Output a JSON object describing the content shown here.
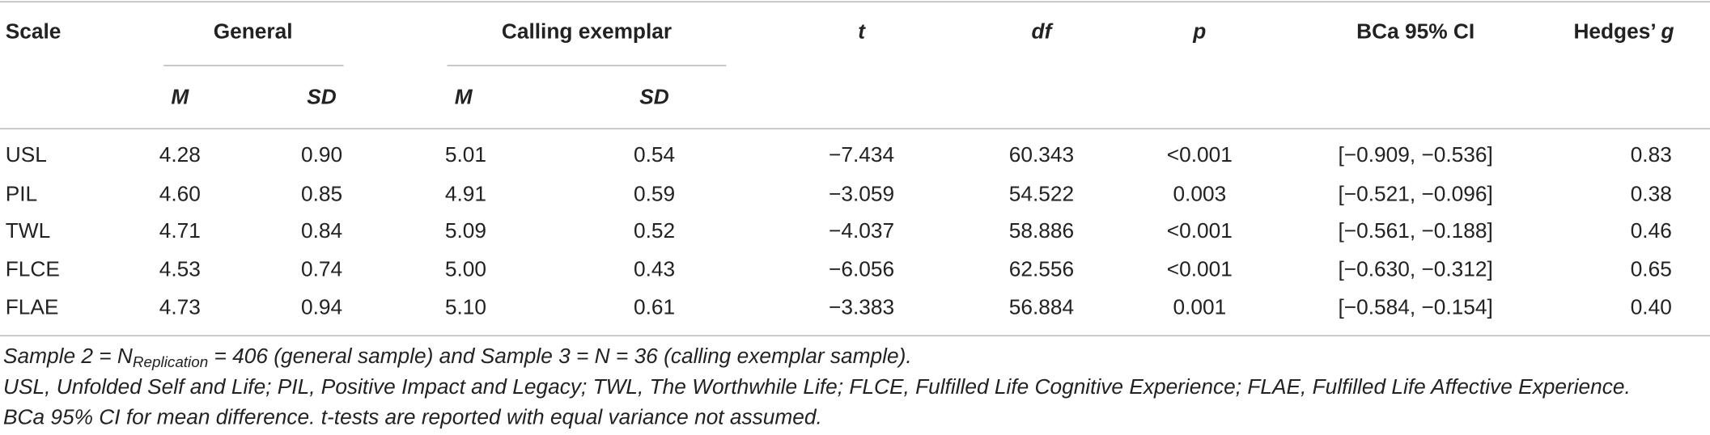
{
  "header": {
    "scale": "Scale",
    "groups": [
      "General",
      "Calling exemplar"
    ],
    "stats": [
      "t",
      "df",
      "p"
    ],
    "ci": "BCa 95% CI",
    "hedges": [
      "Hedges’ ",
      "g"
    ]
  },
  "subheader": [
    "M",
    "SD",
    "M",
    "SD"
  ],
  "rows": [
    [
      "USL",
      "4.28",
      "0.90",
      "5.01",
      "0.54",
      "−7.434",
      "60.343",
      "<0.001",
      "[−0.909, −0.536]",
      "0.83"
    ],
    [
      "PIL",
      "4.60",
      "0.85",
      "4.91",
      "0.59",
      "−3.059",
      "54.522",
      "0.003",
      "[−0.521, −0.096]",
      "0.38"
    ],
    [
      "TWL",
      "4.71",
      "0.84",
      "5.09",
      "0.52",
      "−4.037",
      "58.886",
      "<0.001",
      "[−0.561, −0.188]",
      "0.46"
    ],
    [
      "FLCE",
      "4.53",
      "0.74",
      "5.00",
      "0.43",
      "−6.056",
      "62.556",
      "<0.001",
      "[−0.630, −0.312]",
      "0.65"
    ],
    [
      "FLAE",
      "4.73",
      "0.94",
      "5.10",
      "0.61",
      "−3.383",
      "56.884",
      "0.001",
      "[−0.584, −0.154]",
      "0.40"
    ]
  ],
  "notes": [
    [
      "Sample 2 = N",
      "Replication",
      " = 406 (general sample) and Sample 3 = N = 36 (calling exemplar sample)."
    ],
    "USL, Unfolded Self and Life; PIL, Positive Impact and Legacy; TWL, The Worthwhile Life; FLCE, Fulfilled Life Cognitive Experience; FLAE, Fulfilled Life Affective Experience.",
    "BCa 95% CI for mean difference. t-tests are reported with equal variance not assumed."
  ]
}
